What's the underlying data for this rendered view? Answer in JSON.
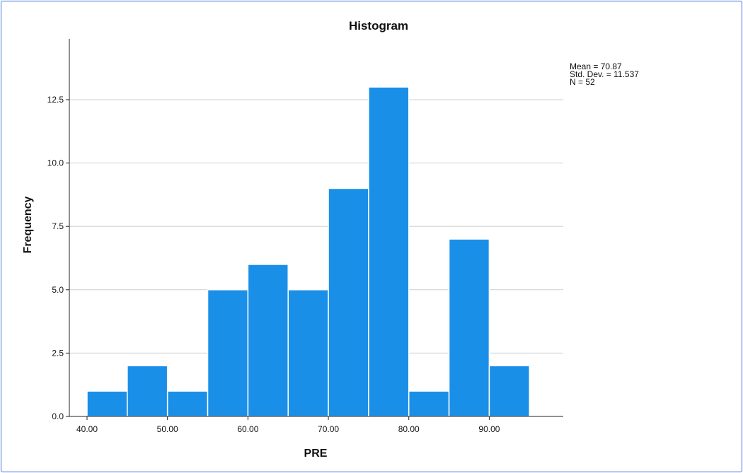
{
  "chart_data": {
    "type": "bar",
    "title": "Histogram",
    "xlabel": "PRE",
    "ylabel": "Frequency",
    "bin_width": 5,
    "bins": [
      {
        "start": 40,
        "end": 45,
        "count": 1
      },
      {
        "start": 45,
        "end": 50,
        "count": 2
      },
      {
        "start": 50,
        "end": 55,
        "count": 1
      },
      {
        "start": 55,
        "end": 60,
        "count": 5
      },
      {
        "start": 60,
        "end": 65,
        "count": 6
      },
      {
        "start": 65,
        "end": 70,
        "count": 5
      },
      {
        "start": 70,
        "end": 75,
        "count": 9
      },
      {
        "start": 75,
        "end": 80,
        "count": 13
      },
      {
        "start": 80,
        "end": 85,
        "count": 1
      },
      {
        "start": 85,
        "end": 90,
        "count": 7
      },
      {
        "start": 90,
        "end": 95,
        "count": 2
      }
    ],
    "xlim": [
      37.8,
      99.2
    ],
    "ylim": [
      0,
      14.9
    ],
    "x_ticks": [
      40,
      50,
      60,
      70,
      80,
      90
    ],
    "x_tick_labels": [
      "40.00",
      "50.00",
      "60.00",
      "70.00",
      "80.00",
      "90.00"
    ],
    "y_ticks": [
      0,
      2.5,
      5,
      7.5,
      10,
      12.5
    ],
    "y_tick_labels": [
      "0.0",
      "2.5",
      "5.0",
      "7.5",
      "10.0",
      "12.5"
    ],
    "grid": true,
    "bar_color": "#1a8fe8",
    "stats": [
      "Mean = 70.87",
      "Std. Dev. = 11.537",
      "N = 52"
    ],
    "stats_placement": "top-right"
  }
}
